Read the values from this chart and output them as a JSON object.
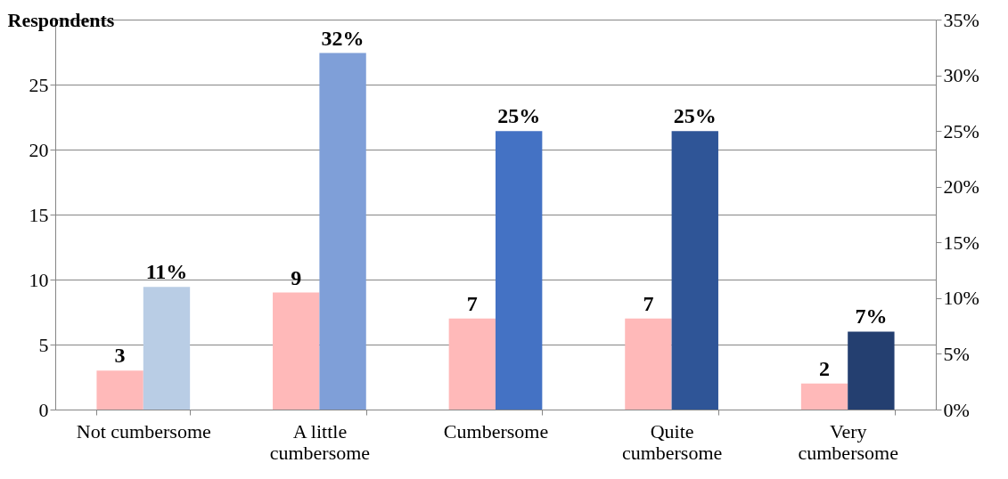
{
  "chart_data": {
    "type": "bar",
    "ylabel": "Respondents",
    "categories": [
      "Not cumbersome",
      "A little cumbersome",
      "Cumbersome",
      "Quite cumbersome",
      "Very cumbersome"
    ],
    "series": [
      {
        "color": "#ffb9b9",
        "values": [
          3,
          9,
          7,
          7,
          2
        ],
        "value_labels": [
          "3",
          "9",
          "7",
          "7",
          "2"
        ]
      },
      {
        "axis": "y2",
        "colors": [
          "#b9cde5",
          "#7f9fd8",
          "#4472c4",
          "#2f5597",
          "#243f70"
        ],
        "values": [
          11,
          32,
          25,
          25,
          7
        ],
        "value_labels": [
          "11%",
          "32%",
          "25%",
          "25%",
          "7%"
        ]
      }
    ],
    "ylim": [
      0,
      30
    ],
    "yticks": [
      0,
      5,
      10,
      15,
      20,
      25,
      {
        "value": 30,
        "label": null
      }
    ],
    "y2lim": [
      0,
      35
    ],
    "y2ticks": [
      {
        "value": 0,
        "label": "0%"
      },
      {
        "value": 5,
        "label": "5%"
      },
      {
        "value": 10,
        "label": "10%"
      },
      {
        "value": 15,
        "label": "15%"
      },
      {
        "value": 20,
        "label": "20%"
      },
      {
        "value": 25,
        "label": "25%"
      },
      {
        "value": 30,
        "label": "30%"
      },
      {
        "value": 35,
        "label": "35%"
      }
    ],
    "grid": "y"
  }
}
